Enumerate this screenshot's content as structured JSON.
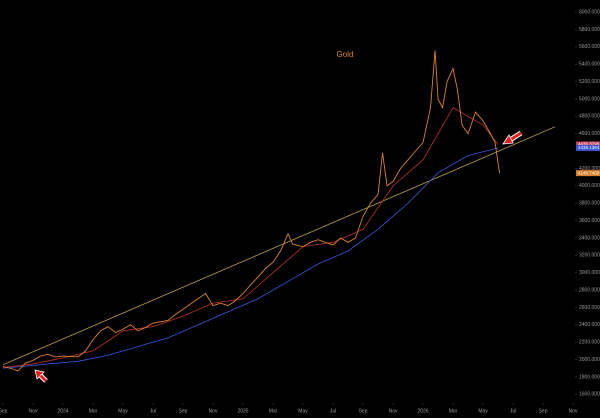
{
  "chart_data": {
    "type": "line",
    "title": "Gold",
    "xlim": [
      -0.2,
      38.13
    ],
    "ylim": [
      1500,
      6140
    ],
    "xticks": [
      {
        "value": 0,
        "label": "Sep"
      },
      {
        "value": 2,
        "label": "Nov"
      },
      {
        "value": 4,
        "label": "2024"
      },
      {
        "value": 6,
        "label": "Mar"
      },
      {
        "value": 8,
        "label": "May"
      },
      {
        "value": 10,
        "label": "Jul"
      },
      {
        "value": 12,
        "label": "Sep"
      },
      {
        "value": 14,
        "label": "Nov"
      },
      {
        "value": 16,
        "label": "2025"
      },
      {
        "value": 18,
        "label": "Mar"
      },
      {
        "value": 20,
        "label": "May"
      },
      {
        "value": 22,
        "label": "Jul"
      },
      {
        "value": 24,
        "label": "Sep"
      },
      {
        "value": 26,
        "label": "Nov"
      },
      {
        "value": 28,
        "label": "2026"
      },
      {
        "value": 30,
        "label": "Mar"
      },
      {
        "value": 32,
        "label": "May"
      },
      {
        "value": 34,
        "label": "Jul"
      },
      {
        "value": 36,
        "label": "Sep"
      },
      {
        "value": 38,
        "label": "Nov"
      }
    ],
    "yticks": [
      {
        "value": 6000,
        "label": "6000.0000"
      },
      {
        "value": 5800,
        "label": "5800.0000"
      },
      {
        "value": 5600,
        "label": "5600.0000"
      },
      {
        "value": 5400,
        "label": "5400.0000"
      },
      {
        "value": 5200,
        "label": "5200.0000"
      },
      {
        "value": 5000,
        "label": "5000.0000"
      },
      {
        "value": 4800,
        "label": "4800.0000"
      },
      {
        "value": 4600,
        "label": "4600.0000"
      },
      {
        "value": 4200,
        "label": "4200.0000"
      },
      {
        "value": 4000,
        "label": "4000.0000"
      },
      {
        "value": 3800,
        "label": "3800.0000"
      },
      {
        "value": 3600,
        "label": "3600.0000"
      },
      {
        "value": 3400,
        "label": "3400.0000"
      },
      {
        "value": 3200,
        "label": "3200.0000"
      },
      {
        "value": 3000,
        "label": "3000.0000"
      },
      {
        "value": 2800,
        "label": "2800.0000"
      },
      {
        "value": 2600,
        "label": "2600.0000"
      },
      {
        "value": 2400,
        "label": "2400.0000"
      },
      {
        "value": 2200,
        "label": "2200.0000"
      },
      {
        "value": 2000,
        "label": "2000.0000"
      },
      {
        "value": 1800,
        "label": "1800.0000"
      },
      {
        "value": 1600,
        "label": "1600.0000"
      }
    ],
    "series": [
      {
        "color": "#b9a14a",
        "x": [
          0,
          36.8
        ],
        "values": [
          1940,
          4680
        ]
      },
      {
        "color": "#3b55d6",
        "x": [
          0,
          3,
          5,
          7,
          9,
          11,
          13,
          15,
          17,
          19,
          21,
          23,
          25,
          27,
          29,
          31,
          33
        ],
        "values": [
          1900,
          1950,
          1980,
          2050,
          2150,
          2250,
          2400,
          2550,
          2700,
          2900,
          3100,
          3250,
          3500,
          3800,
          4150,
          4350,
          4436.1364
        ]
      },
      {
        "color": "#b8332c",
        "x": [
          0,
          2,
          4,
          6,
          8,
          10,
          12,
          14,
          16,
          18,
          20,
          22,
          24,
          26,
          28,
          30,
          32,
          33
        ],
        "values": [
          1910,
          1950,
          2020,
          2100,
          2330,
          2380,
          2500,
          2650,
          2700,
          3000,
          3300,
          3350,
          3500,
          4000,
          4300,
          4900,
          4700,
          4476.3795
        ]
      },
      {
        "color": "#d9822b",
        "x": [
          0,
          0.5,
          1,
          1.5,
          2,
          2.5,
          3,
          3.5,
          4,
          5,
          5.5,
          6,
          6.5,
          7,
          7.5,
          8,
          8.5,
          9,
          9.5,
          10,
          11,
          11.5,
          12,
          12.5,
          13,
          13.5,
          14,
          14.5,
          15,
          15.5,
          16,
          16.5,
          17,
          17.5,
          18,
          18.5,
          19,
          19.3,
          20,
          20.5,
          21,
          22,
          22.5,
          23,
          23.5,
          24,
          24.5,
          25,
          25.3,
          25.6,
          26,
          26.5,
          27,
          27.5,
          28,
          28.5,
          28.8,
          29,
          29.3,
          29.6,
          30,
          30.3,
          30.6,
          31,
          31.5,
          32,
          32.5,
          32.8,
          33.1
        ],
        "values": [
          1920,
          1900,
          1870,
          1960,
          1990,
          2040,
          2060,
          2030,
          2040,
          2030,
          2100,
          2230,
          2330,
          2380,
          2310,
          2350,
          2400,
          2330,
          2370,
          2420,
          2450,
          2520,
          2580,
          2640,
          2700,
          2760,
          2620,
          2650,
          2620,
          2680,
          2760,
          2860,
          2950,
          3050,
          3120,
          3250,
          3450,
          3330,
          3300,
          3350,
          3380,
          3320,
          3400,
          3350,
          3400,
          3650,
          3800,
          3900,
          4380,
          4000,
          4050,
          4200,
          4300,
          4400,
          4500,
          4900,
          5560,
          5000,
          4900,
          5200,
          5350,
          5100,
          4700,
          4600,
          4850,
          4750,
          4600,
          4500,
          4146.74
        ]
      }
    ],
    "price_tags": [
      {
        "value": 4476.3795,
        "label": "4476.3795",
        "color": "#c9415e"
      },
      {
        "value": 4436.1364,
        "label": "4436.1364",
        "color": "#3b55d6"
      },
      {
        "value": 4146.74,
        "label": "4146.7400",
        "color": "#d9822b"
      }
    ]
  }
}
